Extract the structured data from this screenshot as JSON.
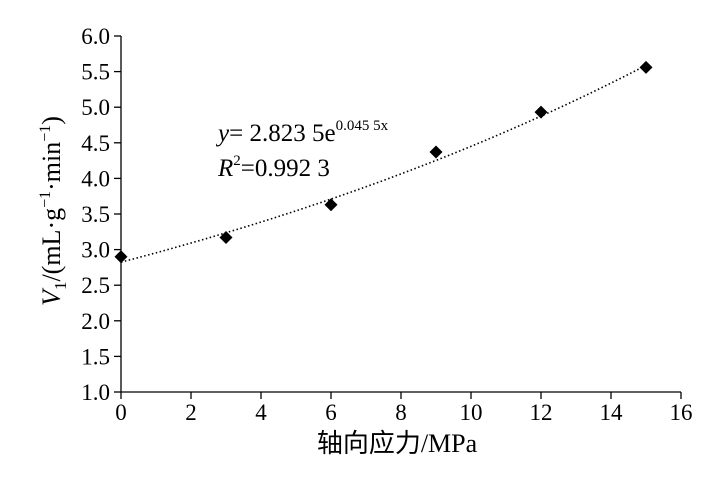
{
  "chart_data": {
    "type": "scatter",
    "x": [
      0,
      3,
      6,
      9,
      12,
      15
    ],
    "y": [
      2.9,
      3.17,
      3.63,
      4.37,
      4.93,
      5.56
    ],
    "xlim": [
      0,
      16
    ],
    "ylim": [
      1.0,
      6.0
    ],
    "x_ticks": [
      "0",
      "2",
      "4",
      "6",
      "8",
      "10",
      "12",
      "14",
      "16"
    ],
    "y_ticks": [
      "1.0",
      "1.5",
      "2.0",
      "2.5",
      "3.0",
      "3.5",
      "4.0",
      "4.5",
      "5.0",
      "5.5",
      "6.0"
    ],
    "xlabel": "轴向应力/MPa",
    "ylabel": {
      "var": "V",
      "sub": "1",
      "units_a": "/(mL·g",
      "sup1": "−1",
      "units_b": "·min",
      "sup2": "−1",
      "units_c": ")"
    },
    "marker": "diamond",
    "marker_color": "#000000",
    "grid": false,
    "trendline": {
      "type": "exponential",
      "a": 2.8235,
      "b": 0.0455,
      "style": "dotted",
      "equation": {
        "lhs": "y",
        "rhs": "= 2.823 5e",
        "exponent": "0.045 5x"
      },
      "r2": {
        "symbol": "R",
        "power": "2",
        "value": "=0.992 3"
      }
    }
  }
}
